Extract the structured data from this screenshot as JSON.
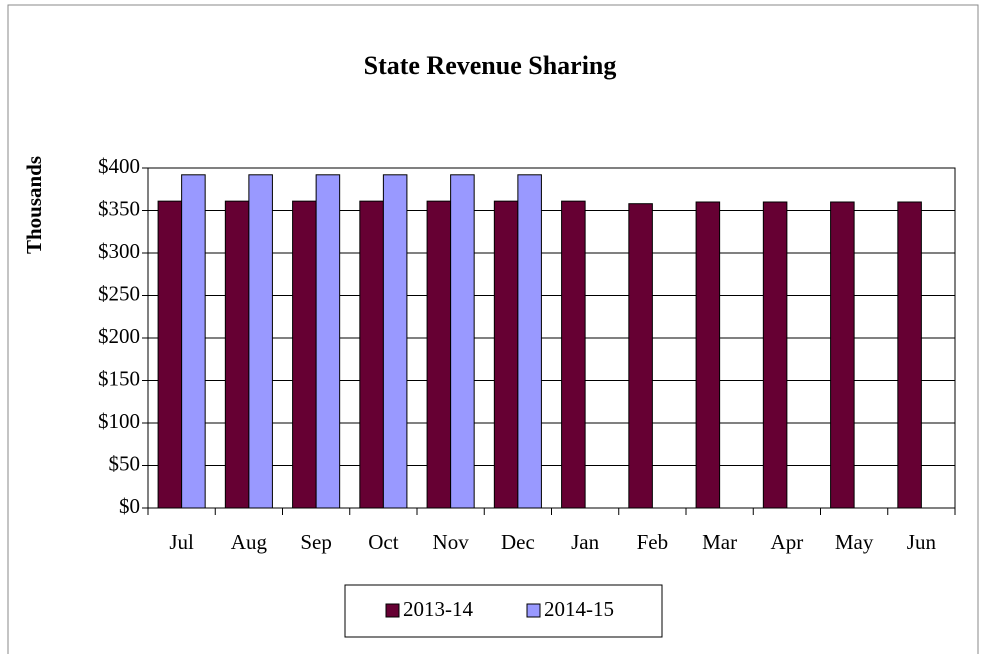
{
  "chart_data": {
    "type": "bar",
    "title": "State Revenue Sharing",
    "ylabel": "Thousands",
    "categories": [
      "Jul",
      "Aug",
      "Sep",
      "Oct",
      "Nov",
      "Dec",
      "Jan",
      "Feb",
      "Mar",
      "Apr",
      "May",
      "Jun"
    ],
    "series": [
      {
        "name": "2013-14",
        "color": "#660033",
        "values": [
          361,
          361,
          361,
          361,
          361,
          361,
          361,
          358,
          360,
          360,
          360,
          360
        ]
      },
      {
        "name": "2014-15",
        "color": "#9999ff",
        "values": [
          392,
          392,
          392,
          392,
          392,
          392,
          null,
          null,
          null,
          null,
          null,
          null
        ]
      }
    ],
    "ylim": [
      0,
      400
    ],
    "yticks": [
      {
        "value": 0,
        "label": "$0"
      },
      {
        "value": 50,
        "label": "$50"
      },
      {
        "value": 100,
        "label": "$100"
      },
      {
        "value": 150,
        "label": "$150"
      },
      {
        "value": 200,
        "label": "$200"
      },
      {
        "value": 250,
        "label": "$250"
      },
      {
        "value": 300,
        "label": "$300"
      },
      {
        "value": 350,
        "label": "$350"
      },
      {
        "value": 400,
        "label": "$400"
      }
    ],
    "grid": true,
    "legend": "bottom"
  }
}
